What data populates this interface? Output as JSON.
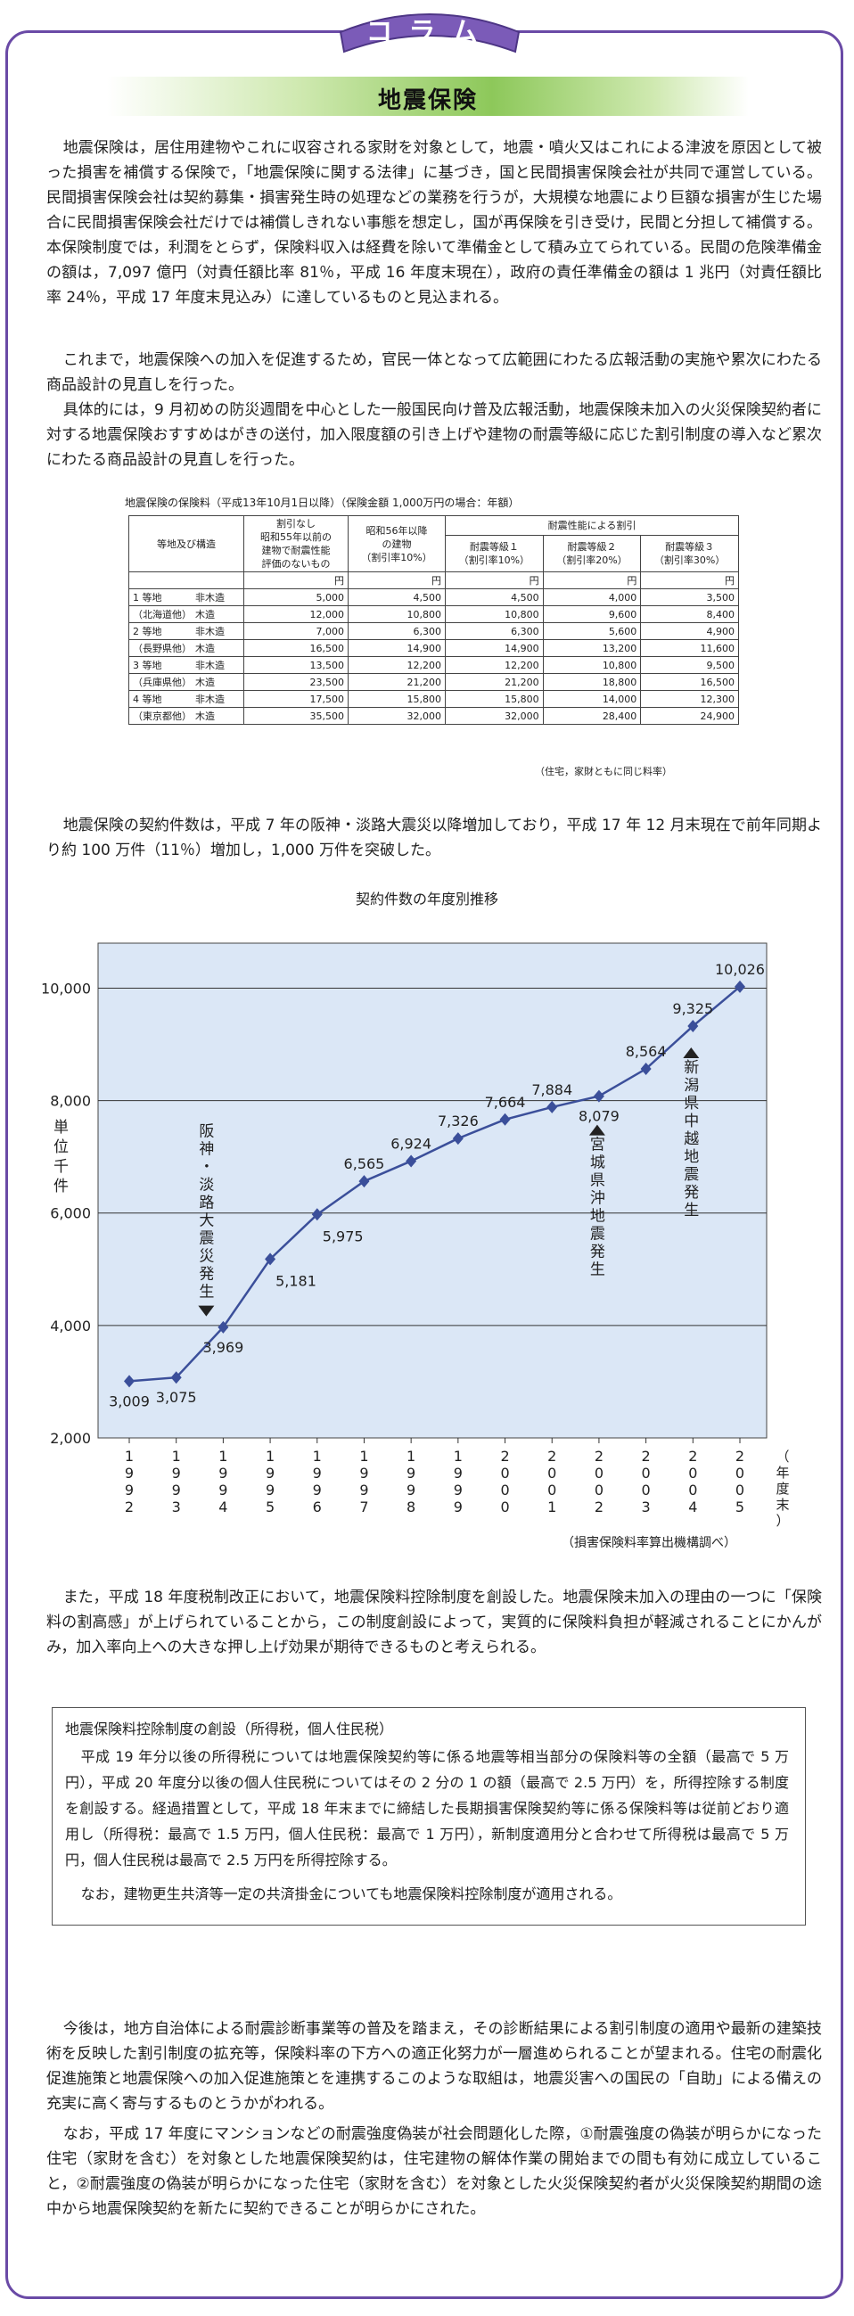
{
  "header": {
    "badge": "コラム",
    "title": "地震保険"
  },
  "paragraphs": [
    "地震保険は，居住用建物やこれに収容される家財を対象として，地震・噴火又はこれによる津波を原因として被った損害を補償する保険で，「地震保険に関する法律」に基づき，国と民間損害保険会社が共同で運営している。民間損害保険会社は契約募集・損害発生時の処理などの業務を行うが，大規模な地震により巨額な損害が生じた場合に民間損害保険会社だけでは補償しきれない事態を想定し，国が再保険を引き受け，民間と分担して補償する。本保険制度では，利潤をとらず，保険料収入は経費を除いて準備金として積み立てられている。民間の危険準備金の額は，7,097 億円（対責任額比率 81％，平成 16 年度末現在），政府の責任準備金の額は 1 兆円（対責任額比率 24％，平成 17 年度末見込み）に達しているものと見込まれる。",
    "これまで，地震保険への加入を促進するため，官民一体となって広範囲にわたる広報活動の実施や累次にわたる商品設計の見直しを行った。",
    "具体的には，9 月初めの防災週間を中心とした一般国民向け普及広報活動，地震保険未加入の火災保険契約者に対する地震保険おすすめはがきの送付，加入限度額の引き上げや建物の耐震等級に応じた割引制度の導入など累次にわたる商品設計の見直しを行った。"
  ],
  "rate_table": {
    "caption": "地震保険の保険料（平成13年10月1日以降）（保険金額 1,000万円の場合：年額）",
    "h_region": "等地及び構造",
    "h_nodiscount": "割引なし\n昭和55年以前の\n建物で耐震性能\n評価のないもの",
    "h_1981": "昭和56年以降\nの建物\n（割引率10%）",
    "h_grade": "耐震性能による割引",
    "h_g1": "耐震等級１\n（割引率10%）",
    "h_g2": "耐震等級２\n（割引率20%）",
    "h_g3": "耐震等級３\n（割引率30%）",
    "unit": "円",
    "rows": [
      {
        "region": "1 等地",
        "type": "非木造",
        "v": [
          "5,000",
          "4,500",
          "4,500",
          "4,000",
          "3,500"
        ]
      },
      {
        "region": "（北海道他）",
        "type": "木造",
        "v": [
          "12,000",
          "10,800",
          "10,800",
          "9,600",
          "8,400"
        ]
      },
      {
        "region": "2 等地",
        "type": "非木造",
        "v": [
          "7,000",
          "6,300",
          "6,300",
          "5,600",
          "4,900"
        ]
      },
      {
        "region": "（長野県他）",
        "type": "木造",
        "v": [
          "16,500",
          "14,900",
          "14,900",
          "13,200",
          "11,600"
        ]
      },
      {
        "region": "3 等地",
        "type": "非木造",
        "v": [
          "13,500",
          "12,200",
          "12,200",
          "10,800",
          "9,500"
        ]
      },
      {
        "region": "（兵庫県他）",
        "type": "木造",
        "v": [
          "23,500",
          "21,200",
          "21,200",
          "18,800",
          "16,500"
        ]
      },
      {
        "region": "4 等地",
        "type": "非木造",
        "v": [
          "17,500",
          "15,800",
          "15,800",
          "14,000",
          "12,300"
        ]
      },
      {
        "region": "（東京都他）",
        "type": "木造",
        "v": [
          "35,500",
          "32,000",
          "32,000",
          "28,400",
          "24,900"
        ]
      }
    ],
    "note": "（住宅，家財ともに同じ料率）"
  },
  "contract_paragraph": "地震保険の契約件数は，平成 7 年の阪神・淡路大震災以降増加しており，平成 17 年 12 月末現在で前年同期より約 100 万件（11％）増加し，1,000 万件を突破した。",
  "chart_data": {
    "type": "line",
    "title": "契約件数の年度別推移",
    "ylabel": "単位千件",
    "xlabel": "（年度末）",
    "ylim": [
      2000,
      10800
    ],
    "yticks": [
      2000,
      4000,
      6000,
      8000,
      10000
    ],
    "ytick_labels": [
      "2,000",
      "4,000",
      "6,000",
      "8,000",
      "10,000"
    ],
    "grid": true,
    "x": [
      "1992",
      "1993",
      "1994",
      "1995",
      "1996",
      "1997",
      "1998",
      "1999",
      "2000",
      "2001",
      "2002",
      "2003",
      "2004",
      "2005"
    ],
    "values": [
      3009,
      3075,
      3969,
      5181,
      5975,
      6565,
      6924,
      7326,
      7664,
      7884,
      8079,
      8564,
      9325,
      10026
    ],
    "value_labels": [
      "3,009",
      "3,075",
      "3,969",
      "5,181",
      "5,975",
      "6,565",
      "6,924",
      "7,326",
      "7,664",
      "7,884",
      "8,079",
      "8,564",
      "9,325",
      "10,026"
    ],
    "annotations": [
      {
        "text": "阪神・淡路大震災発生",
        "x": "1994",
        "dir": "down"
      },
      {
        "text": "宮城県沖地震発生",
        "x": "2002",
        "dir": "up"
      },
      {
        "text": "新潟県中越地震発生",
        "x": "2004",
        "dir": "up"
      }
    ],
    "source": "（損害保険料率算出機構調べ）"
  },
  "tax_paragraph": "また，平成 18 年度税制改正において，地震保険料控除制度を創設した。地震保険未加入の理由の一つに「保険料の割高感」が上げられていることから，この制度創設によって，実質的に保険料負担が軽減されることにかんがみ，加入率向上への大きな押し上げ効果が期待できるものと考えられる。",
  "tax_box": {
    "heading": "地震保険料控除制度の創設（所得税，個人住民税）",
    "p1": "平成 19 年分以後の所得税については地震保険契約等に係る地震等相当部分の保険料等の全額（最高で 5 万円），平成 20 年度分以後の個人住民税についてはその 2 分の 1 の額（最高で 2.5 万円）を，所得控除する制度を創設する。経過措置として，平成 18 年末までに締結した長期損害保険契約等に係る保険料等は従前どおり適用し（所得税：最高で 1.5 万円，個人住民税：最高で 1 万円），新制度適用分と合わせて所得税は最高で 5 万円，個人住民税は最高で 2.5 万円を所得控除する。",
    "p2": "なお，建物更生共済等一定の共済掛金についても地震保険料控除制度が適用される。"
  },
  "closing": [
    "今後は，地方自治体による耐震診断事業等の普及を踏まえ，その診断結果による割引制度の適用や最新の建築技術を反映した割引制度の拡充等，保険料率の下方への適正化努力が一層進められることが望まれる。住宅の耐震化促進施策と地震保険への加入促進施策とを連携するこのような取組は，地震災害への国民の「自助」による備えの充実に高く寄与するものとうかがわれる。",
    "なお，平成 17 年度にマンションなどの耐震強度偽装が社会問題化した際，①耐震強度の偽装が明らかになった住宅（家財を含む）を対象とした地震保険契約は，住宅建物の解体作業の開始までの間も有効に成立していること，②耐震強度の偽装が明らかになった住宅（家財を含む）を対象とした火災保険契約者が火災保険契約期間の途中から地震保険契約を新たに契約できることが明らかにされた。"
  ],
  "colors": {
    "frame": "#6a4aa6",
    "badge_fill": "#7b5bb8",
    "title_green": "#8dc85a",
    "chart_bg": "#dbe7f6",
    "series": "#3b4f9a"
  }
}
